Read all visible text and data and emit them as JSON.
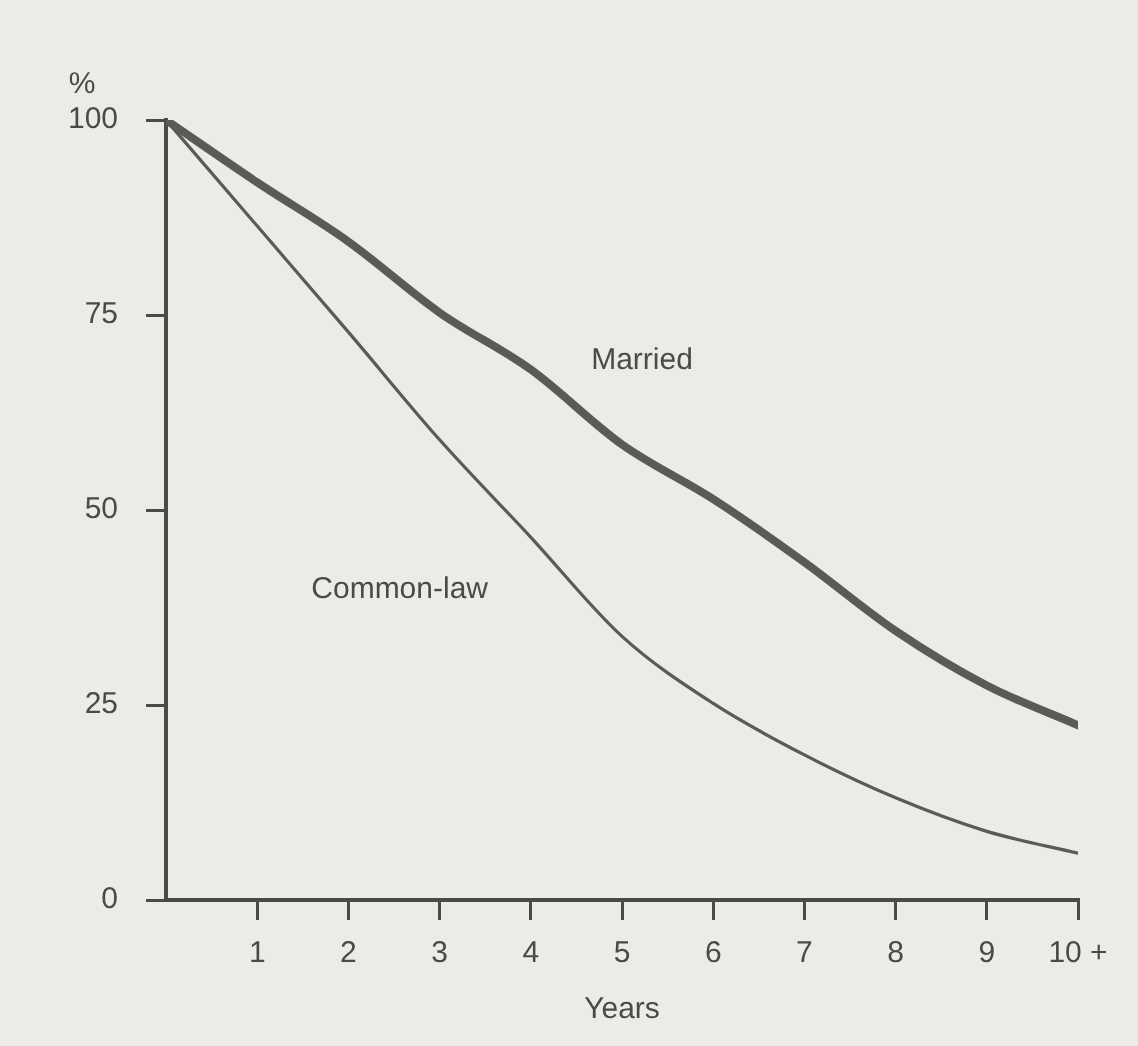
{
  "chart_data": {
    "type": "line",
    "ylabel": "%",
    "xlabel": "Years",
    "x": [
      0,
      1,
      2,
      3,
      4,
      5,
      6,
      7,
      8,
      9,
      10
    ],
    "series": [
      {
        "name": "Married",
        "color": "#5a5a56",
        "values": [
          100,
          92,
          84.4,
          75.3,
          68,
          58.4,
          51.4,
          43.3,
          34.5,
          27.5,
          22.4
        ]
      },
      {
        "name": "Common-law",
        "color": "#5a5a56",
        "values": [
          100,
          86.4,
          72.8,
          59,
          46.5,
          33.8,
          25.2,
          18.6,
          13.1,
          8.8,
          6
        ]
      }
    ],
    "xlim": [
      0,
      10
    ],
    "xticks": [
      1,
      2,
      3,
      4,
      5,
      6,
      7,
      8,
      9,
      {
        "value": 10,
        "label": "10 +"
      }
    ],
    "ylim": [
      0,
      100
    ],
    "yticks": [
      0,
      25,
      50,
      75,
      100
    ],
    "grid": false,
    "legend": false,
    "marker": "none",
    "line_style": "solid"
  }
}
